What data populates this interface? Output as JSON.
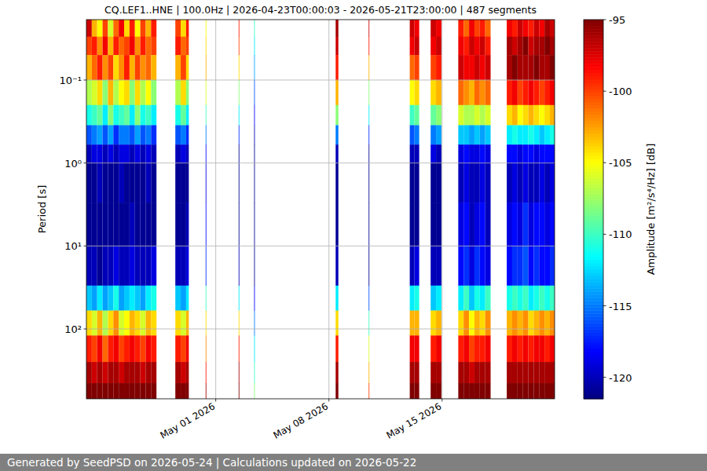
{
  "chart_data": {
    "type": "heatmap",
    "title": "CQ.LEF1..HNE | 100.0Hz | 2026-04-23T00:00:03 - 2026-05-21T23:00:00 | 487 segments",
    "ylabel": "Period [s]",
    "log": "y",
    "grid": true,
    "xlim": [
      "2026-04-23T00:00:03",
      "2026-05-21T23:00:00"
    ],
    "xticks": [
      {
        "value": "2026-05-01T00:00",
        "label": "May 01 2026"
      },
      {
        "value": "2026-05-08T00:00",
        "label": "May 08 2026"
      },
      {
        "value": "2026-05-15T00:00",
        "label": "May 15 2026"
      }
    ],
    "ylim": [
      695,
      0.0187
    ],
    "yticks": [
      {
        "value": 0.1,
        "label": "10⁻¹"
      },
      {
        "value": 1,
        "label": "10⁰"
      },
      {
        "value": 10,
        "label": "10¹"
      },
      {
        "value": 100,
        "label": "10²"
      }
    ],
    "y_bins": [
      0.0187,
      0.03,
      0.05,
      0.1,
      0.2,
      0.35,
      0.6,
      1,
      3,
      10,
      30,
      60,
      120,
      250,
      450,
      695
    ],
    "columns": [
      {
        "start": "2026-04-23T00:00:03",
        "end": "2026-04-23T08:00",
        "values": [
          -97,
          -100,
          -103,
          -107,
          -111,
          -116,
          -120,
          -121,
          -121,
          -120,
          -113,
          -104,
          -99,
          -96,
          -95
        ]
      },
      {
        "start": "2026-04-23T08:00",
        "end": "2026-04-23T16:00",
        "values": [
          -103,
          -99,
          -101,
          -106,
          -110,
          -115,
          -119,
          -121,
          -121,
          -120,
          -114,
          -106,
          -100,
          -97,
          -95
        ]
      },
      {
        "start": "2026-04-23T16:00",
        "end": "2026-04-24T00:00",
        "values": [
          -105,
          -102,
          -99,
          -104,
          -109,
          -114,
          -119,
          -120,
          -121,
          -121,
          -112,
          -103,
          -98,
          -96,
          -95
        ]
      },
      {
        "start": "2026-04-24T00:00",
        "end": "2026-04-24T08:00",
        "values": [
          -100,
          -98,
          -102,
          -108,
          -112,
          -116,
          -120,
          -121,
          -121,
          -120,
          -114,
          -107,
          -101,
          -97,
          -95
        ]
      },
      {
        "start": "2026-04-24T08:00",
        "end": "2026-04-24T16:00",
        "values": [
          -106,
          -103,
          -100,
          -103,
          -108,
          -114,
          -119,
          -121,
          -121,
          -120,
          -113,
          -104,
          -99,
          -96,
          -95
        ]
      },
      {
        "start": "2026-04-24T16:00",
        "end": "2026-04-25T00:00",
        "values": [
          -101,
          -99,
          -104,
          -107,
          -111,
          -117,
          -120,
          -121,
          -121,
          -119,
          -111,
          -102,
          -98,
          -96,
          -95
        ]
      },
      {
        "start": "2026-04-25T00:00",
        "end": "2026-04-25T08:00",
        "values": [
          -98,
          -101,
          -102,
          -105,
          -110,
          -115,
          -119,
          -120,
          -121,
          -120,
          -114,
          -106,
          -100,
          -97,
          -95
        ]
      },
      {
        "start": "2026-04-25T08:00",
        "end": "2026-04-25T16:00",
        "values": [
          -104,
          -100,
          -99,
          -104,
          -109,
          -115,
          -119,
          -121,
          -121,
          -120,
          -113,
          -105,
          -99,
          -96,
          -95
        ]
      },
      {
        "start": "2026-04-25T16:00",
        "end": "2026-04-26T00:00",
        "values": [
          -99,
          -98,
          -103,
          -108,
          -112,
          -116,
          -120,
          -121,
          -120,
          -119,
          -112,
          -103,
          -98,
          -96,
          -95
        ]
      },
      {
        "start": "2026-04-26T00:00",
        "end": "2026-04-26T08:00",
        "values": [
          -105,
          -102,
          -100,
          -104,
          -108,
          -114,
          -119,
          -121,
          -121,
          -120,
          -113,
          -104,
          -99,
          -96,
          -95
        ]
      },
      {
        "start": "2026-04-26T08:00",
        "end": "2026-04-26T16:00",
        "values": [
          -100,
          -99,
          -102,
          -107,
          -111,
          -116,
          -120,
          -121,
          -121,
          -120,
          -114,
          -106,
          -100,
          -97,
          -95
        ]
      },
      {
        "start": "2026-04-26T16:00",
        "end": "2026-04-27T00:00",
        "values": [
          -103,
          -101,
          -101,
          -105,
          -110,
          -115,
          -119,
          -120,
          -121,
          -120,
          -112,
          -103,
          -98,
          -96,
          -95
        ]
      },
      {
        "start": "2026-04-27T00:00",
        "end": "2026-04-27T08:00",
        "values": [
          -99,
          -100,
          -103,
          -108,
          -112,
          -117,
          -120,
          -121,
          -121,
          -119,
          -111,
          -104,
          -99,
          -96,
          -95
        ]
      },
      {
        "start": "2026-04-28T12:00",
        "end": "2026-04-28T20:00",
        "values": [
          -100,
          -99,
          -103,
          -107,
          -111,
          -116,
          -120,
          -121,
          -121,
          -120,
          -113,
          -104,
          -99,
          -96,
          -95
        ]
      },
      {
        "start": "2026-04-28T20:00",
        "end": "2026-04-29T04:00",
        "values": [
          -104,
          -101,
          -100,
          -104,
          -109,
          -115,
          -119,
          -121,
          -121,
          -120,
          -114,
          -106,
          -100,
          -97,
          -95
        ]
      },
      {
        "start": "2026-04-29T04:00",
        "end": "2026-04-29T08:00",
        "values": [
          -99,
          -100,
          -104,
          -108,
          -112,
          -117,
          -120,
          -121,
          -120,
          -119,
          -112,
          -103,
          -98,
          -96,
          -95
        ]
      },
      {
        "start": "2026-04-30T09:00",
        "end": "2026-04-30T10:00",
        "values": [
          -105,
          -104,
          -103,
          -106,
          -110,
          -115,
          -118,
          -119,
          -118,
          -117,
          -110,
          -104,
          -102,
          -99,
          -96
        ]
      },
      {
        "start": "2026-05-02T10:00",
        "end": "2026-05-02T11:00",
        "values": [
          -99,
          -100,
          -104,
          -108,
          -112,
          -117,
          -121,
          -121,
          -121,
          -120,
          -112,
          -104,
          -99,
          -96,
          -95
        ]
      },
      {
        "start": "2026-05-03T09:00",
        "end": "2026-05-03T10:00",
        "values": [
          -110,
          -112,
          -114,
          -116,
          -118,
          -120,
          -121,
          -121,
          -121,
          -121,
          -118,
          -115,
          -112,
          -110,
          -108
        ]
      },
      {
        "start": "2026-05-08T10:00",
        "end": "2026-05-08T14:00",
        "values": [
          -96,
          -97,
          -99,
          -103,
          -108,
          -115,
          -120,
          -121,
          -121,
          -120,
          -112,
          -104,
          -99,
          -96,
          -95
        ]
      },
      {
        "start": "2026-05-10T11:00",
        "end": "2026-05-10T12:00",
        "values": [
          -97,
          -99,
          -103,
          -108,
          -112,
          -117,
          -121,
          -121,
          -121,
          -121,
          -116,
          -110,
          -106,
          -103,
          -100
        ]
      },
      {
        "start": "2026-05-13T00:00",
        "end": "2026-05-13T07:00",
        "values": [
          -97,
          -98,
          -101,
          -105,
          -110,
          -116,
          -120,
          -121,
          -121,
          -120,
          -112,
          -103,
          -98,
          -96,
          -95
        ]
      },
      {
        "start": "2026-05-13T07:00",
        "end": "2026-05-13T14:00",
        "values": [
          -98,
          -97,
          -100,
          -104,
          -109,
          -115,
          -120,
          -121,
          -121,
          -119,
          -111,
          -103,
          -98,
          -96,
          -95
        ]
      },
      {
        "start": "2026-05-14T07:00",
        "end": "2026-05-14T15:00",
        "values": [
          -97,
          -98,
          -100,
          -104,
          -109,
          -115,
          -119,
          -121,
          -121,
          -120,
          -113,
          -104,
          -99,
          -96,
          -95
        ]
      },
      {
        "start": "2026-05-14T15:00",
        "end": "2026-05-14T23:00",
        "values": [
          -98,
          -97,
          -99,
          -103,
          -108,
          -114,
          -120,
          -121,
          -121,
          -120,
          -112,
          -103,
          -98,
          -96,
          -95
        ]
      },
      {
        "start": "2026-05-16T00:00",
        "end": "2026-05-16T08:00",
        "values": [
          -99,
          -98,
          -97,
          -101,
          -106,
          -113,
          -119,
          -120,
          -119,
          -118,
          -112,
          -104,
          -99,
          -96,
          -95
        ]
      },
      {
        "start": "2026-05-16T08:00",
        "end": "2026-05-16T16:00",
        "values": [
          -101,
          -99,
          -98,
          -102,
          -107,
          -113,
          -118,
          -119,
          -118,
          -117,
          -110,
          -102,
          -98,
          -96,
          -95
        ]
      },
      {
        "start": "2026-05-16T16:00",
        "end": "2026-05-17T00:00",
        "values": [
          -98,
          -97,
          -98,
          -103,
          -107,
          -114,
          -119,
          -120,
          -120,
          -119,
          -113,
          -105,
          -100,
          -97,
          -95
        ]
      },
      {
        "start": "2026-05-17T00:00",
        "end": "2026-05-17T08:00",
        "values": [
          -100,
          -98,
          -97,
          -101,
          -106,
          -113,
          -119,
          -120,
          -119,
          -117,
          -111,
          -103,
          -99,
          -96,
          -95
        ]
      },
      {
        "start": "2026-05-17T08:00",
        "end": "2026-05-17T16:00",
        "values": [
          -99,
          -97,
          -98,
          -102,
          -107,
          -114,
          -118,
          -119,
          -118,
          -118,
          -112,
          -104,
          -99,
          -96,
          -95
        ]
      },
      {
        "start": "2026-05-17T16:00",
        "end": "2026-05-18T00:00",
        "values": [
          -101,
          -99,
          -97,
          -101,
          -106,
          -113,
          -119,
          -120,
          -120,
          -119,
          -110,
          -102,
          -98,
          -96,
          -95
        ]
      },
      {
        "start": "2026-05-19T00:00",
        "end": "2026-05-19T08:00",
        "values": [
          -98,
          -96,
          -96,
          -99,
          -104,
          -112,
          -118,
          -120,
          -119,
          -118,
          -111,
          -103,
          -99,
          -96,
          -95
        ]
      },
      {
        "start": "2026-05-19T08:00",
        "end": "2026-05-19T16:00",
        "values": [
          -99,
          -97,
          -95,
          -98,
          -103,
          -111,
          -118,
          -119,
          -118,
          -117,
          -110,
          -102,
          -98,
          -96,
          -95
        ]
      },
      {
        "start": "2026-05-19T16:00",
        "end": "2026-05-20T00:00",
        "values": [
          -97,
          -96,
          -96,
          -100,
          -105,
          -112,
          -119,
          -120,
          -119,
          -117,
          -111,
          -103,
          -99,
          -96,
          -95
        ]
      },
      {
        "start": "2026-05-20T00:00",
        "end": "2026-05-20T08:00",
        "values": [
          -98,
          -95,
          -96,
          -99,
          -104,
          -112,
          -118,
          -119,
          -117,
          -116,
          -110,
          -102,
          -98,
          -96,
          -95
        ]
      },
      {
        "start": "2026-05-20T08:00",
        "end": "2026-05-20T16:00",
        "values": [
          -99,
          -97,
          -96,
          -98,
          -103,
          -111,
          -118,
          -120,
          -119,
          -118,
          -112,
          -104,
          -99,
          -96,
          -95
        ]
      },
      {
        "start": "2026-05-20T16:00",
        "end": "2026-05-21T00:00",
        "values": [
          -97,
          -96,
          -95,
          -99,
          -104,
          -112,
          -119,
          -120,
          -118,
          -117,
          -111,
          -103,
          -98,
          -96,
          -95
        ]
      },
      {
        "start": "2026-05-21T00:00",
        "end": "2026-05-21T08:00",
        "values": [
          -98,
          -96,
          -96,
          -100,
          -105,
          -113,
          -118,
          -119,
          -118,
          -118,
          -110,
          -102,
          -98,
          -96,
          -95
        ]
      },
      {
        "start": "2026-05-21T08:00",
        "end": "2026-05-21T16:00",
        "values": [
          -96,
          -95,
          -96,
          -99,
          -104,
          -112,
          -118,
          -120,
          -119,
          -118,
          -111,
          -103,
          -99,
          -96,
          -95
        ]
      },
      {
        "start": "2026-05-21T16:00",
        "end": "2026-05-21T23:00:00",
        "values": [
          -97,
          -96,
          -95,
          -98,
          -103,
          -111,
          -118,
          -119,
          -118,
          -117,
          -110,
          -102,
          -98,
          -96,
          -95
        ]
      }
    ],
    "colorbar": {
      "label": "Amplitude [m²/s⁴/Hz] [dB]",
      "range": [
        -121.5,
        -95
      ],
      "ticks": [
        -95,
        -100,
        -105,
        -110,
        -115,
        -120
      ]
    },
    "footer": "Generated by SeedPSD on 2026-05-24 | Calculations updated on 2026-05-22"
  }
}
